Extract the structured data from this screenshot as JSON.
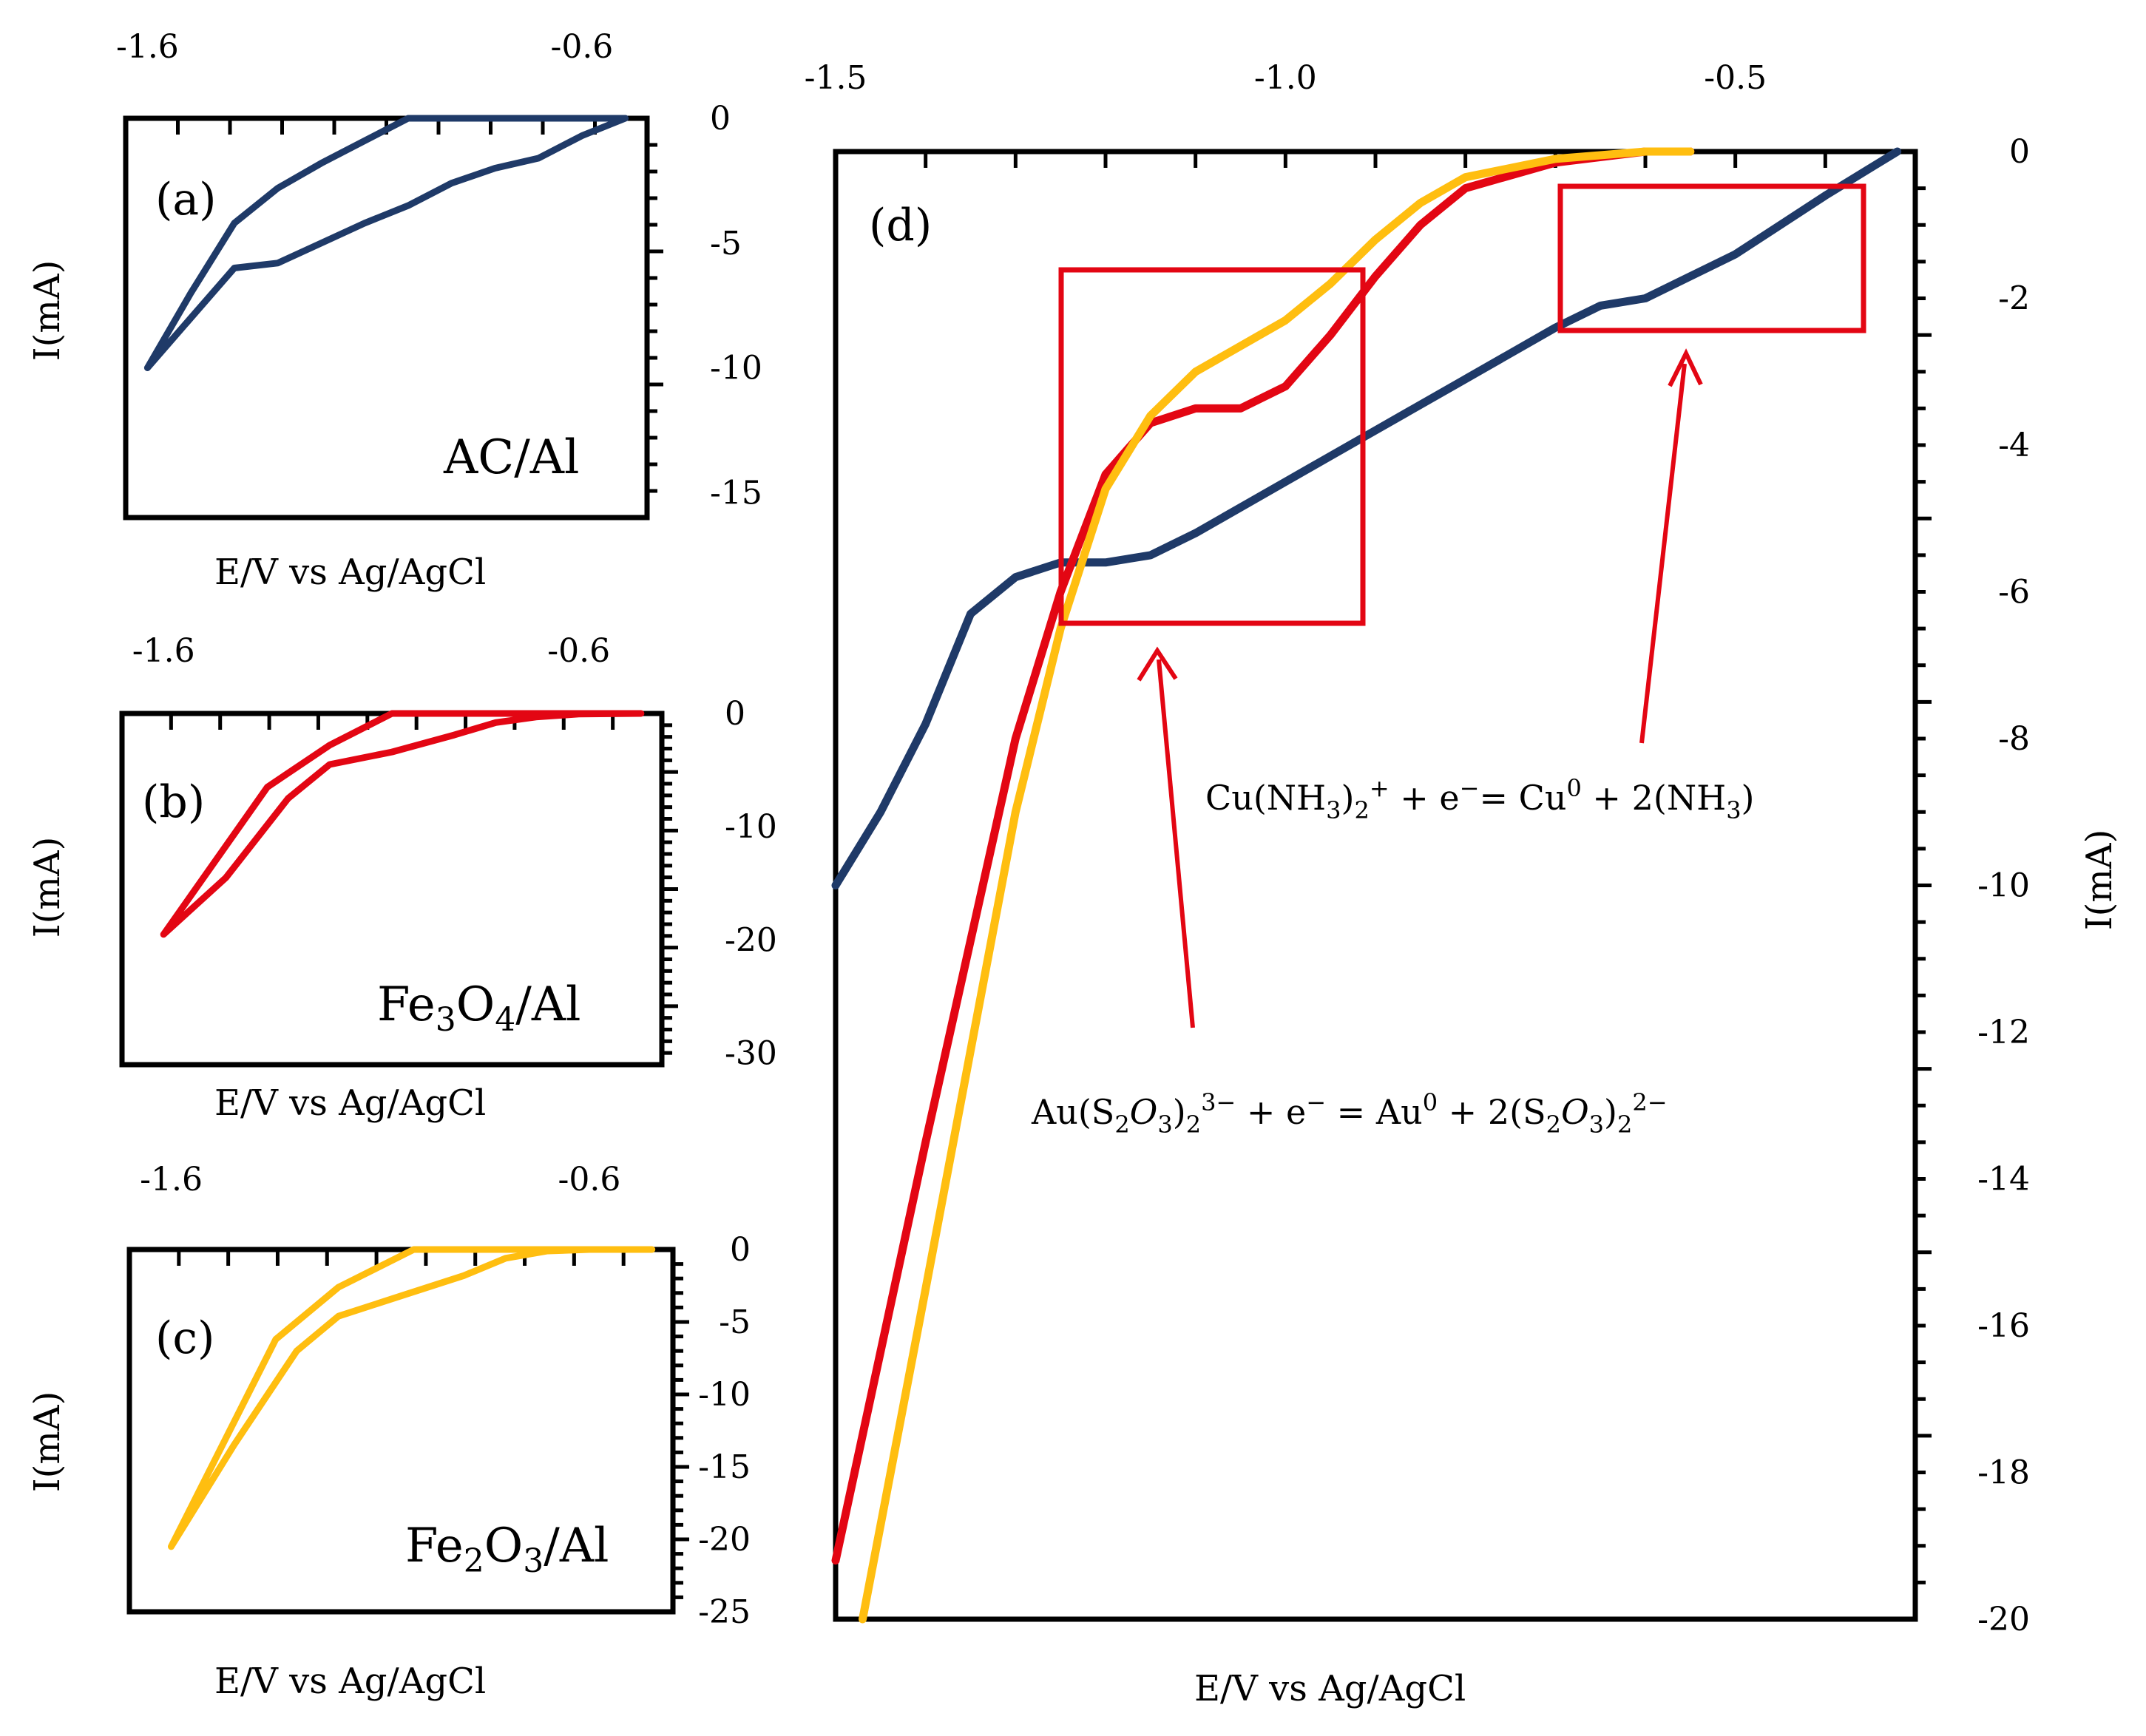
{
  "colors": {
    "navy": "#1f3a68",
    "red": "#e30613",
    "yellow": "#ffbe10",
    "box": "#e30613"
  },
  "chart_data": [
    {
      "id": "a",
      "type": "line",
      "panel_label": "(a)",
      "material": "AC/Al",
      "xlabel": "E/V vs Ag/AgCl",
      "ylabel": "I(mA)",
      "xlim": [
        -1.65,
        -0.45
      ],
      "ylim": [
        -16,
        0
      ],
      "xticklabels": [
        "-1.6",
        "-0.6"
      ],
      "xticks": [
        -1.6,
        -0.6
      ],
      "yticklabels": [
        "0",
        "-5",
        "-10",
        "-15"
      ],
      "yticks": [
        0,
        -5,
        -10,
        -15
      ],
      "series": [
        {
          "name": "AC/Al",
          "color": "#1f3a68",
          "x": [
            -1.6,
            -1.5,
            -1.4,
            -1.3,
            -1.2,
            -1.1,
            -1.0,
            -0.9,
            -0.8,
            -0.7,
            -0.6,
            -0.5,
            -1.0,
            -1.1,
            -1.2,
            -1.3,
            -1.4,
            -1.5,
            -1.6
          ],
          "y": [
            -10,
            -8,
            -6.0,
            -5.8,
            -5.0,
            -4.2,
            -3.5,
            -2.6,
            -2.0,
            -1.6,
            -0.7,
            0,
            0,
            -0.9,
            -1.8,
            -2.8,
            -4.2,
            -7.0,
            -10
          ]
        }
      ]
    },
    {
      "id": "b",
      "type": "line",
      "panel_label": "(b)",
      "material_parts": [
        "Fe",
        "3",
        "O",
        "4",
        "/Al"
      ],
      "xlabel": "E/V vs Ag/AgCl",
      "ylabel": "I(mA)",
      "xlim": [
        -1.7,
        -0.4
      ],
      "ylim": [
        -31,
        0
      ],
      "xticklabels": [
        "-1.6",
        "-0.6"
      ],
      "xticks": [
        -1.6,
        -0.6
      ],
      "yticklabels": [
        "0",
        "-10",
        "-20",
        "-30"
      ],
      "yticks": [
        0,
        -10,
        -20,
        -30
      ],
      "series": [
        {
          "name": "Fe3O4/Al",
          "color": "#e30613",
          "x": [
            -1.6,
            -1.45,
            -1.3,
            -1.2,
            -1.05,
            -0.9,
            -0.8,
            -0.7,
            -0.6,
            -0.45,
            -1.05,
            -1.2,
            -1.35,
            -1.6
          ],
          "y": [
            -19.5,
            -14.5,
            -7.5,
            -4.5,
            -3.4,
            -1.9,
            -0.8,
            -0.3,
            -0.05,
            0,
            0,
            -2.8,
            -6.5,
            -19.5
          ]
        }
      ]
    },
    {
      "id": "c",
      "type": "line",
      "panel_label": "(c)",
      "material_parts": [
        "Fe",
        "2",
        "O",
        "3",
        "/Al"
      ],
      "xlabel": "E/V vs Ag/AgCl",
      "ylabel": "I(mA)",
      "xlim": [
        -1.7,
        -0.4
      ],
      "ylim": [
        -25,
        0
      ],
      "xticklabels": [
        "-1.6",
        "-0.6"
      ],
      "xticks": [
        -1.6,
        -0.6
      ],
      "yticklabels": [
        "0",
        "-5",
        "-10",
        "-15",
        "-20",
        "-25"
      ],
      "yticks": [
        0,
        -5,
        -10,
        -15,
        -20,
        -25
      ],
      "series": [
        {
          "name": "Fe2O3/Al",
          "color": "#ffbe10",
          "x": [
            -1.6,
            -1.45,
            -1.3,
            -1.2,
            -1.05,
            -0.9,
            -0.8,
            -0.7,
            -0.6,
            -0.45,
            -1.02,
            -1.2,
            -1.35,
            -1.6
          ],
          "y": [
            -20.5,
            -13.5,
            -7,
            -4.6,
            -3.2,
            -1.8,
            -0.6,
            -0.1,
            0,
            0,
            0,
            -2.6,
            -6.2,
            -20.5
          ]
        }
      ]
    },
    {
      "id": "d",
      "type": "line",
      "panel_label": "(d)",
      "xlabel": "E/V vs Ag/AgCl",
      "ylabel": "I(mA)",
      "xlim": [
        -1.5,
        -0.3
      ],
      "ylim": [
        -20,
        0
      ],
      "xticklabels": [
        "-1.5",
        "-1.0",
        "-0.5"
      ],
      "xticks": [
        -1.5,
        -1.0,
        -0.5
      ],
      "yticklabels": [
        "0",
        "-2",
        "-4",
        "-6",
        "-8",
        "-10",
        "-12",
        "-14",
        "-16",
        "-18",
        "-20"
      ],
      "yticks": [
        0,
        -2,
        -4,
        -6,
        -8,
        -10,
        -12,
        -14,
        -16,
        -18,
        -20
      ],
      "series": [
        {
          "name": "AC/Al",
          "color": "#1f3a68",
          "x": [
            -1.5,
            -1.45,
            -1.4,
            -1.35,
            -1.3,
            -1.25,
            -1.2,
            -1.15,
            -1.1,
            -1.0,
            -0.9,
            -0.8,
            -0.7,
            -0.65,
            -0.6,
            -0.5,
            -0.4,
            -0.32
          ],
          "y": [
            -10.0,
            -9.0,
            -7.8,
            -6.3,
            -5.8,
            -5.6,
            -5.6,
            -5.5,
            -5.2,
            -4.5,
            -3.8,
            -3.1,
            -2.4,
            -2.1,
            -2.0,
            -1.4,
            -0.6,
            0
          ]
        },
        {
          "name": "Fe3O4/Al",
          "color": "#e30613",
          "x": [
            -1.5,
            -1.4,
            -1.3,
            -1.25,
            -1.2,
            -1.15,
            -1.1,
            -1.05,
            -1.0,
            -0.95,
            -0.9,
            -0.85,
            -0.8,
            -0.7,
            -0.6,
            -0.55
          ],
          "y": [
            -19.2,
            -13.5,
            -8.0,
            -6.0,
            -4.4,
            -3.7,
            -3.5,
            -3.5,
            -3.2,
            -2.5,
            -1.7,
            -1.0,
            -0.5,
            -0.15,
            0,
            0
          ]
        },
        {
          "name": "Fe2O3/Al",
          "color": "#ffbe10",
          "x": [
            -1.47,
            -1.4,
            -1.3,
            -1.25,
            -1.2,
            -1.15,
            -1.1,
            -1.0,
            -0.95,
            -0.9,
            -0.85,
            -0.8,
            -0.7,
            -0.6,
            -0.55
          ],
          "y": [
            -20.0,
            -15.5,
            -9.0,
            -6.5,
            -4.6,
            -3.6,
            -3.0,
            -2.3,
            -1.8,
            -1.2,
            -0.7,
            -0.35,
            -0.1,
            0,
            0
          ]
        }
      ],
      "annotations": {
        "cu_eq": {
          "p1": "Cu(NH",
          "s1": "3",
          "p2": ")",
          "s2": "2",
          "sup1": "+",
          "p3": " +  e",
          "sup2": "−",
          "p4": "= Cu",
          "sup3": "0",
          "p5": " + 2(NH",
          "s3": "3",
          "p6": ")"
        },
        "au_eq": {
          "p1": "Au(S",
          "s1": "2",
          "p2": "O",
          "s2": "3",
          "p3": ")",
          "s3": "2",
          "sup1": "3−",
          "p4": " +  e",
          "sup2": "−",
          "p5": " = Au",
          "sup3": "0",
          "p6": "  +  2(S",
          "s4": "2",
          "p7": "O",
          "s5": "3",
          "p8": ")",
          "s6": "2",
          "sup4": "2−"
        }
      }
    }
  ]
}
